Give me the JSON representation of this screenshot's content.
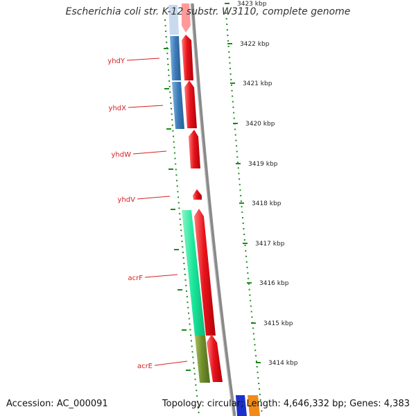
{
  "title": "Escherichia coli str. K-12 substr. W3110, complete genome",
  "footer": {
    "accession": "Accession: AC_000091",
    "summary": "Topology: circular; Length: 4,646,332 bp; Genes: 4,383"
  },
  "colors": {
    "backbone": "#8a8a8a",
    "cds_forward": "#e8141c",
    "tick": "#1a8a1a",
    "label": "#d42020",
    "blue_feature": "#3c7bb8",
    "light_blue_feature": "#c9daf0",
    "teal_feature": "#19e69a",
    "olive_feature": "#6e8c2a",
    "blue_bottom": "#1a2fcc",
    "orange_bottom": "#f08a18"
  },
  "ruler": [
    {
      "label": "3423 kbp"
    },
    {
      "label": "3422 kbp"
    },
    {
      "label": "3421 kbp"
    },
    {
      "label": "3420 kbp"
    },
    {
      "label": "3419 kbp"
    },
    {
      "label": "3418 kbp"
    },
    {
      "label": "3417 kbp"
    },
    {
      "label": "3416 kbp"
    },
    {
      "label": "3415 kbp"
    },
    {
      "label": "3414 kbp"
    }
  ],
  "genes": [
    {
      "name": "yhdY"
    },
    {
      "name": "yhdX"
    },
    {
      "name": "yhdW"
    },
    {
      "name": "yhdV"
    },
    {
      "name": "acrF"
    },
    {
      "name": "acrE"
    }
  ]
}
